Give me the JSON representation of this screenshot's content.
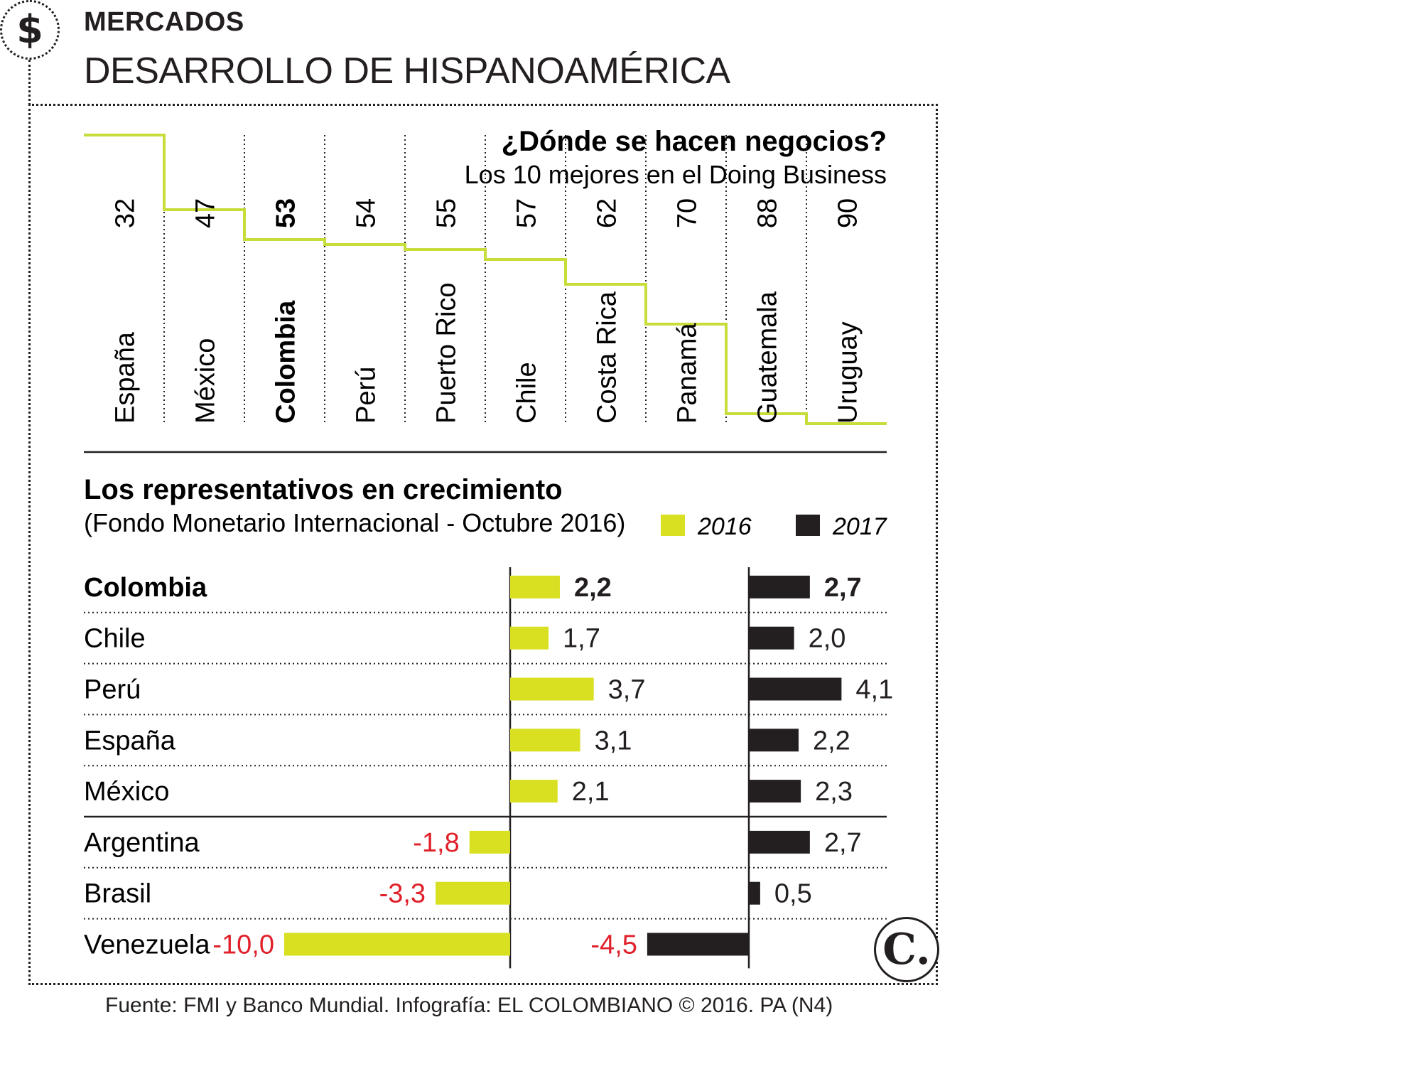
{
  "header": {
    "icon": "dollar-icon",
    "icon_glyph": "$",
    "section": "MERCADOS",
    "title": "DESARROLLO DE HISPANOAMÉRICA"
  },
  "footer": {
    "source": "Fuente: FMI y Banco Mundial. Infografía: EL COLOMBIANO © 2016. PA (N4)",
    "logo_glyph": "C."
  },
  "colors": {
    "yellow": "#d8e021",
    "black": "#231f20",
    "negative_label": "#e0202a",
    "step_line": "#c8dc3a"
  },
  "chart_data": [
    {
      "type": "line",
      "title": "¿Dónde se hacen negocios?",
      "subtitle": "Los 10 mejores en el Doing Business",
      "categories": [
        "España",
        "México",
        "Colombia",
        "Perú",
        "Puerto Rico",
        "Chile",
        "Costa Rica",
        "Panamá",
        "Guatemala",
        "Uruguay"
      ],
      "values": [
        32,
        47,
        53,
        54,
        55,
        57,
        62,
        70,
        88,
        90
      ],
      "highlight": "Colombia",
      "line_style": "step",
      "y_inverted": true
    },
    {
      "type": "bar",
      "orientation": "horizontal",
      "title": "Los representativos en crecimiento",
      "subtitle": "(Fondo Monetario Internacional - Octubre 2016)",
      "categories": [
        "Colombia",
        "Chile",
        "Perú",
        "España",
        "México",
        "Argentina",
        "Brasil",
        "Venezuela"
      ],
      "highlight": "Colombia",
      "series": [
        {
          "name": "2016",
          "values": [
            2.2,
            1.7,
            3.7,
            3.1,
            2.1,
            -1.8,
            -3.3,
            -10.0
          ],
          "labels": [
            "2,2",
            "1,7",
            "3,7",
            "3,1",
            "2,1",
            "-1,8",
            "-3,3",
            "-10,0"
          ]
        },
        {
          "name": "2017",
          "values": [
            2.7,
            2.0,
            4.1,
            2.2,
            2.3,
            2.7,
            0.5,
            -4.5
          ],
          "labels": [
            "2,7",
            "2,0",
            "4,1",
            "2,2",
            "2,3",
            "2,7",
            "0,5",
            "-4,5"
          ]
        }
      ],
      "legend": "top-right"
    }
  ]
}
